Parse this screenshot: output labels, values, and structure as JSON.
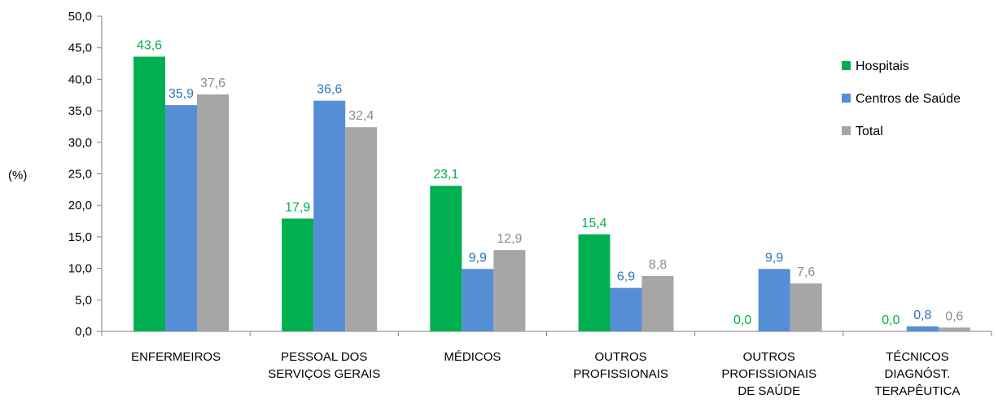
{
  "chart_data": {
    "type": "bar",
    "ylabel": "(%)",
    "ylim": [
      0,
      50
    ],
    "yticks": [
      "0,0",
      "5,0",
      "10,0",
      "15,0",
      "20,0",
      "25,0",
      "30,0",
      "35,0",
      "40,0",
      "45,0",
      "50,0"
    ],
    "grid": false,
    "legend_position": "right",
    "categories": [
      [
        "ENFERMEIROS"
      ],
      [
        "PESSOAL DOS",
        "SERVIÇOS GERAIS"
      ],
      [
        "MÉDICOS"
      ],
      [
        "OUTROS",
        "PROFISSIONAIS"
      ],
      [
        "OUTROS",
        "PROFISSIONAIS",
        "DE SAÚDE"
      ],
      [
        "TÉCNICOS",
        "DIAGNÓST.",
        "TERAPÊUTICA"
      ]
    ],
    "series": [
      {
        "name": "Hospitais",
        "color": "#00B050",
        "label_color": "#00B050",
        "values": [
          43.6,
          17.9,
          23.1,
          15.4,
          0.0,
          0.0
        ],
        "labels": [
          "43,6",
          "17,9",
          "23,1",
          "15,4",
          "0,0",
          "0,0"
        ]
      },
      {
        "name": "Centros de Saúde",
        "color": "#558ED5",
        "label_color": "#2E75B6",
        "values": [
          35.9,
          36.6,
          9.9,
          6.9,
          9.9,
          0.8
        ],
        "labels": [
          "35,9",
          "36,6",
          "9,9",
          "6,9",
          "9,9",
          "0,8"
        ]
      },
      {
        "name": "Total",
        "color": "#A6A6A6",
        "label_color": "#8C8C8C",
        "values": [
          37.6,
          32.4,
          12.9,
          8.8,
          7.6,
          0.6
        ],
        "labels": [
          "37,6",
          "32,4",
          "12,9",
          "8,8",
          "7,6",
          "0,6"
        ]
      }
    ]
  }
}
